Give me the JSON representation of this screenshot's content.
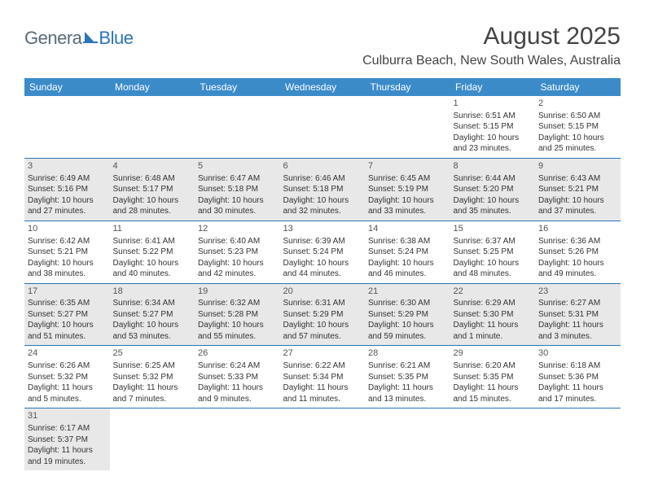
{
  "logo": {
    "part1": "Genera",
    "part2": "Blue"
  },
  "title": "August 2025",
  "location": "Culburra Beach, New South Wales, Australia",
  "colors": {
    "header_bg": "#3b8bc9",
    "header_text": "#ffffff",
    "row_border": "#2a74b8",
    "odd_row_bg": "#e8e8e8",
    "even_row_bg": "#ffffff",
    "logo_gray": "#5a6b7a",
    "logo_blue": "#2a74b8",
    "text": "#333333"
  },
  "day_headers": [
    "Sunday",
    "Monday",
    "Tuesday",
    "Wednesday",
    "Thursday",
    "Friday",
    "Saturday"
  ],
  "weeks": [
    [
      null,
      null,
      null,
      null,
      null,
      {
        "n": "1",
        "sr": "6:51 AM",
        "ss": "5:15 PM",
        "dl": "10 hours and 23 minutes."
      },
      {
        "n": "2",
        "sr": "6:50 AM",
        "ss": "5:15 PM",
        "dl": "10 hours and 25 minutes."
      }
    ],
    [
      {
        "n": "3",
        "sr": "6:49 AM",
        "ss": "5:16 PM",
        "dl": "10 hours and 27 minutes."
      },
      {
        "n": "4",
        "sr": "6:48 AM",
        "ss": "5:17 PM",
        "dl": "10 hours and 28 minutes."
      },
      {
        "n": "5",
        "sr": "6:47 AM",
        "ss": "5:18 PM",
        "dl": "10 hours and 30 minutes."
      },
      {
        "n": "6",
        "sr": "6:46 AM",
        "ss": "5:18 PM",
        "dl": "10 hours and 32 minutes."
      },
      {
        "n": "7",
        "sr": "6:45 AM",
        "ss": "5:19 PM",
        "dl": "10 hours and 33 minutes."
      },
      {
        "n": "8",
        "sr": "6:44 AM",
        "ss": "5:20 PM",
        "dl": "10 hours and 35 minutes."
      },
      {
        "n": "9",
        "sr": "6:43 AM",
        "ss": "5:21 PM",
        "dl": "10 hours and 37 minutes."
      }
    ],
    [
      {
        "n": "10",
        "sr": "6:42 AM",
        "ss": "5:21 PM",
        "dl": "10 hours and 38 minutes."
      },
      {
        "n": "11",
        "sr": "6:41 AM",
        "ss": "5:22 PM",
        "dl": "10 hours and 40 minutes."
      },
      {
        "n": "12",
        "sr": "6:40 AM",
        "ss": "5:23 PM",
        "dl": "10 hours and 42 minutes."
      },
      {
        "n": "13",
        "sr": "6:39 AM",
        "ss": "5:24 PM",
        "dl": "10 hours and 44 minutes."
      },
      {
        "n": "14",
        "sr": "6:38 AM",
        "ss": "5:24 PM",
        "dl": "10 hours and 46 minutes."
      },
      {
        "n": "15",
        "sr": "6:37 AM",
        "ss": "5:25 PM",
        "dl": "10 hours and 48 minutes."
      },
      {
        "n": "16",
        "sr": "6:36 AM",
        "ss": "5:26 PM",
        "dl": "10 hours and 49 minutes."
      }
    ],
    [
      {
        "n": "17",
        "sr": "6:35 AM",
        "ss": "5:27 PM",
        "dl": "10 hours and 51 minutes."
      },
      {
        "n": "18",
        "sr": "6:34 AM",
        "ss": "5:27 PM",
        "dl": "10 hours and 53 minutes."
      },
      {
        "n": "19",
        "sr": "6:32 AM",
        "ss": "5:28 PM",
        "dl": "10 hours and 55 minutes."
      },
      {
        "n": "20",
        "sr": "6:31 AM",
        "ss": "5:29 PM",
        "dl": "10 hours and 57 minutes."
      },
      {
        "n": "21",
        "sr": "6:30 AM",
        "ss": "5:29 PM",
        "dl": "10 hours and 59 minutes."
      },
      {
        "n": "22",
        "sr": "6:29 AM",
        "ss": "5:30 PM",
        "dl": "11 hours and 1 minute."
      },
      {
        "n": "23",
        "sr": "6:27 AM",
        "ss": "5:31 PM",
        "dl": "11 hours and 3 minutes."
      }
    ],
    [
      {
        "n": "24",
        "sr": "6:26 AM",
        "ss": "5:32 PM",
        "dl": "11 hours and 5 minutes."
      },
      {
        "n": "25",
        "sr": "6:25 AM",
        "ss": "5:32 PM",
        "dl": "11 hours and 7 minutes."
      },
      {
        "n": "26",
        "sr": "6:24 AM",
        "ss": "5:33 PM",
        "dl": "11 hours and 9 minutes."
      },
      {
        "n": "27",
        "sr": "6:22 AM",
        "ss": "5:34 PM",
        "dl": "11 hours and 11 minutes."
      },
      {
        "n": "28",
        "sr": "6:21 AM",
        "ss": "5:35 PM",
        "dl": "11 hours and 13 minutes."
      },
      {
        "n": "29",
        "sr": "6:20 AM",
        "ss": "5:35 PM",
        "dl": "11 hours and 15 minutes."
      },
      {
        "n": "30",
        "sr": "6:18 AM",
        "ss": "5:36 PM",
        "dl": "11 hours and 17 minutes."
      }
    ],
    [
      {
        "n": "31",
        "sr": "6:17 AM",
        "ss": "5:37 PM",
        "dl": "11 hours and 19 minutes."
      },
      null,
      null,
      null,
      null,
      null,
      null
    ]
  ],
  "labels": {
    "sunrise": "Sunrise:",
    "sunset": "Sunset:",
    "daylight": "Daylight:"
  }
}
